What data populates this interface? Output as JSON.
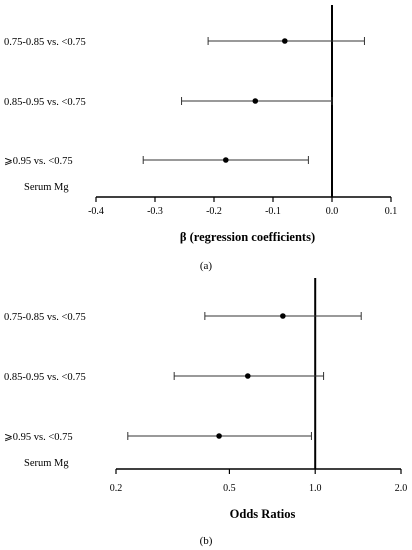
{
  "chart_data": [
    {
      "type": "forest",
      "panel_label": "(a)",
      "group_label": "Serum Mg",
      "xlabel": "β (regression coefficients)",
      "scale": "linear",
      "xlim": [
        -0.4,
        0.1
      ],
      "reference_value": 0.0,
      "ticks": [
        -0.4,
        -0.3,
        -0.2,
        -0.1,
        0.0,
        0.1
      ],
      "tick_labels": [
        "-0.4",
        "-0.3",
        "-0.2",
        "-0.1",
        "0.0",
        "0.1"
      ],
      "rows": [
        {
          "label": "0.75-0.85 vs. <0.75",
          "estimate": -0.08,
          "lower": -0.21,
          "upper": 0.055
        },
        {
          "label": "0.85-0.95 vs. <0.75",
          "estimate": -0.13,
          "lower": -0.255,
          "upper": 0.0
        },
        {
          "label": "⩾0.95 vs. <0.75",
          "estimate": -0.18,
          "lower": -0.32,
          "upper": -0.04
        }
      ]
    },
    {
      "type": "forest",
      "panel_label": "(b)",
      "group_label": "Serum Mg",
      "xlabel": "Odds Ratios",
      "scale": "log",
      "xlim": [
        0.2,
        2.0
      ],
      "reference_value": 1.0,
      "ticks": [
        0.2,
        0.5,
        1.0,
        2.0
      ],
      "tick_labels": [
        "0.2",
        "0.5",
        "1.0",
        "2.0"
      ],
      "rows": [
        {
          "label": "0.75-0.85 vs. <0.75",
          "estimate": 0.77,
          "lower": 0.41,
          "upper": 1.45
        },
        {
          "label": "0.85-0.95 vs. <0.75",
          "estimate": 0.58,
          "lower": 0.32,
          "upper": 1.07
        },
        {
          "label": "⩾0.95 vs. <0.75",
          "estimate": 0.46,
          "lower": 0.22,
          "upper": 0.97
        }
      ]
    }
  ]
}
